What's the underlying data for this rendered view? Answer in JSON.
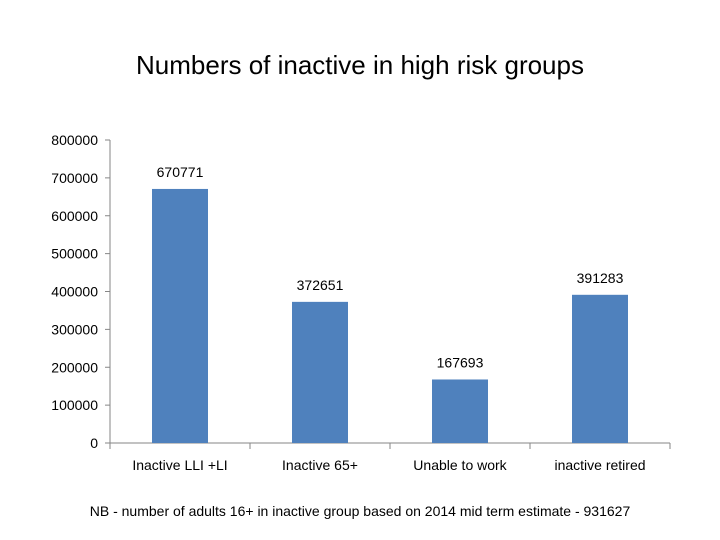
{
  "chart_data": {
    "type": "bar",
    "title": "Numbers of inactive in high risk groups",
    "categories": [
      "Inactive LLI +LI",
      "Inactive 65+",
      "Unable to work",
      "inactive retired"
    ],
    "values": [
      670771,
      372651,
      167693,
      391283
    ],
    "data_labels": [
      "670771",
      "372651",
      "167693",
      "391283"
    ],
    "ylim": [
      0,
      800000
    ],
    "yticks": [
      "0",
      "100000",
      "200000",
      "300000",
      "400000",
      "500000",
      "600000",
      "700000",
      "800000"
    ],
    "xlabel": "",
    "ylabel": "",
    "grid": false,
    "legend": "none",
    "bar_color": "#4F81BD",
    "footnote": "NB - number of adults 16+ in inactive group based on 2014 mid term estimate -  931627"
  }
}
